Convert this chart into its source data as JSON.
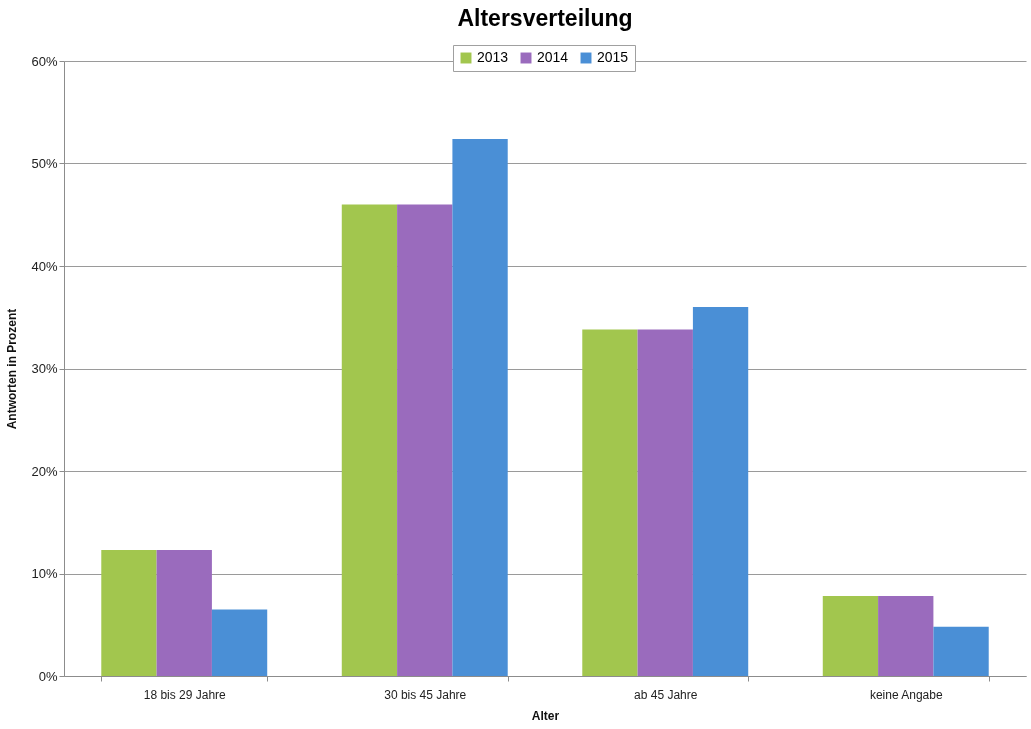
{
  "chart_data": {
    "type": "bar",
    "title": "Altersverteilung",
    "xlabel": "Alter",
    "ylabel": "Antworten in Prozent",
    "categories": [
      "18 bis 29 Jahre",
      "30 bis 45 Jahre",
      "ab 45 Jahre",
      "keine Angabe"
    ],
    "series": [
      {
        "name": "2013",
        "color": "#a2c64e",
        "values": [
          12.3,
          46.0,
          33.8,
          7.8
        ]
      },
      {
        "name": "2014",
        "color": "#9a6bbd",
        "values": [
          12.3,
          46.0,
          33.8,
          7.8
        ]
      },
      {
        "name": "2015",
        "color": "#4a8fd6",
        "values": [
          6.5,
          52.4,
          36.0,
          4.8
        ]
      }
    ],
    "ylim": [
      0,
      60
    ],
    "yticks": [
      {
        "value": 0,
        "label": "0%"
      },
      {
        "value": 10,
        "label": "10%"
      },
      {
        "value": 20,
        "label": "20%"
      },
      {
        "value": 30,
        "label": "30%"
      },
      {
        "value": 40,
        "label": "40%"
      },
      {
        "value": 50,
        "label": "50%"
      },
      {
        "value": 60,
        "label": "60%"
      }
    ],
    "grid": "y",
    "legend": "top"
  }
}
